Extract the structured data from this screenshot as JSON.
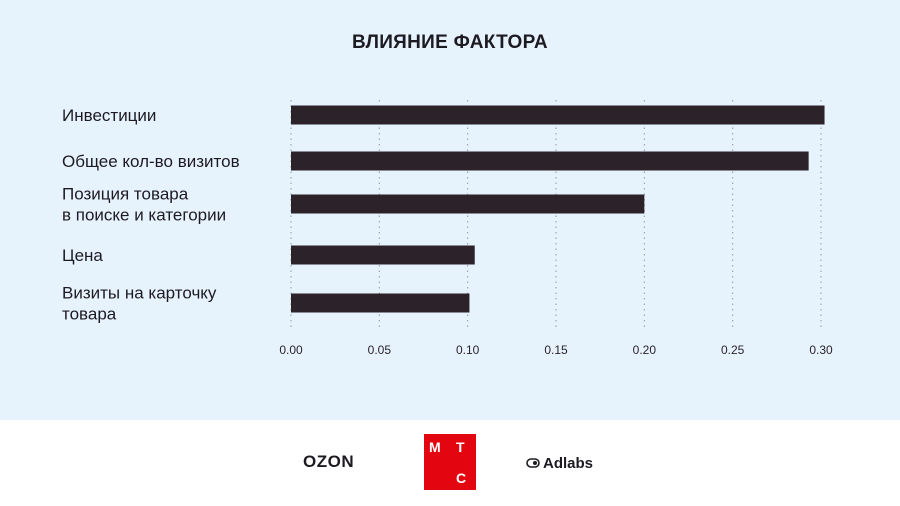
{
  "chart_data": {
    "type": "bar",
    "orientation": "horizontal",
    "title": "ВЛИЯНИЕ ФАКТОРА",
    "categories": [
      [
        "Инвестиции"
      ],
      [
        "Общее кол-во визитов"
      ],
      [
        "Позиция товара",
        "в поиске и категории"
      ],
      [
        "Цена"
      ],
      [
        "Визиты на карточку",
        "товара"
      ]
    ],
    "values": [
      0.302,
      0.293,
      0.2,
      0.104,
      0.101
    ],
    "xlim": [
      0.0,
      0.3
    ],
    "xticks": [
      "0.00",
      "0.05",
      "0.10",
      "0.15",
      "0.20",
      "0.25",
      "0.30"
    ],
    "grid": "vertical dotted",
    "bar_color": "#2b2329",
    "background": "#e6f3fd"
  },
  "footer": {
    "logos": {
      "ozon": "OZON",
      "mts_letters": [
        "М",
        "Т",
        "С"
      ],
      "adlabs": "Adlabs"
    }
  }
}
